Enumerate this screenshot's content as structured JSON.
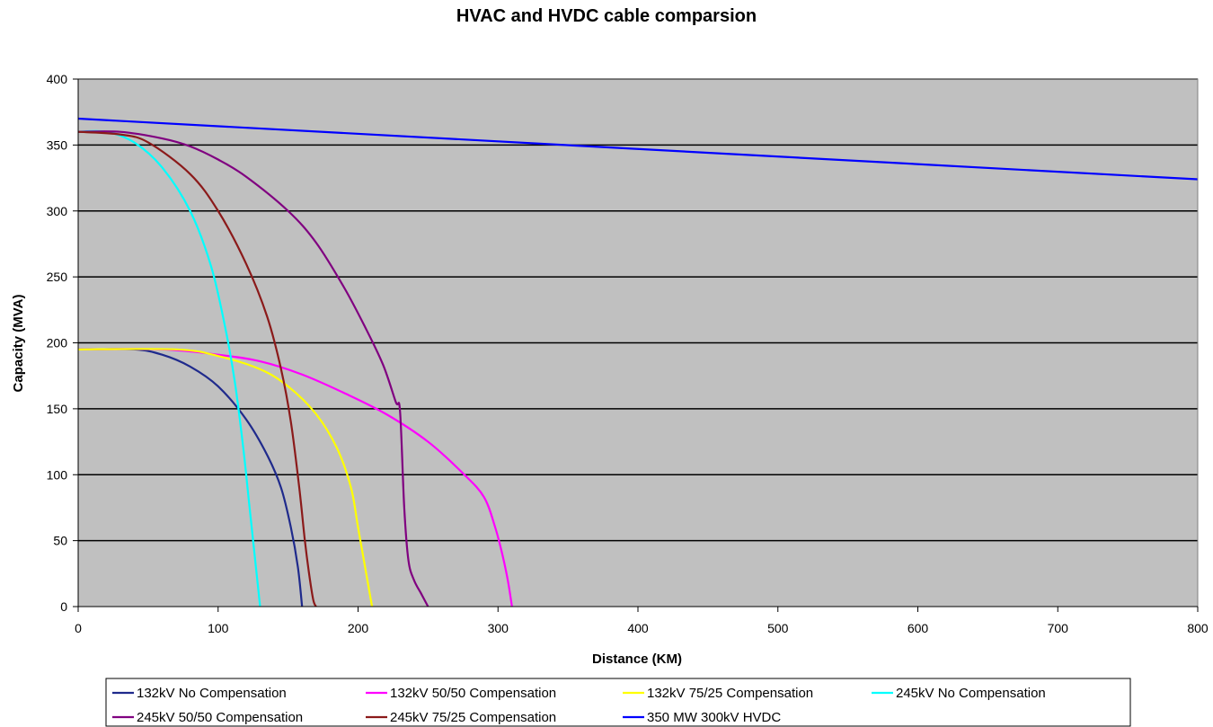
{
  "chart_data": {
    "type": "line",
    "title": "HVAC and HVDC cable comparsion",
    "xlabel": "Distance (KM)",
    "ylabel": "Capacity (MVA)",
    "xlim": [
      0,
      800
    ],
    "ylim": [
      0,
      400
    ],
    "x_ticks": [
      "0",
      "100",
      "200",
      "300",
      "400",
      "500",
      "600",
      "700",
      "800"
    ],
    "y_ticks": [
      "0",
      "50",
      "100",
      "150",
      "200",
      "250",
      "300",
      "350",
      "400"
    ],
    "grid": "horizontal major gridlines",
    "legend_position": "bottom",
    "plot_background": "#c0c0c0",
    "series": [
      {
        "name": "132kV No Compensation",
        "color": "#1f2a8c",
        "points": [
          [
            0,
            195
          ],
          [
            40,
            195
          ],
          [
            60,
            191
          ],
          [
            80,
            182
          ],
          [
            100,
            167
          ],
          [
            120,
            142
          ],
          [
            135,
            115
          ],
          [
            145,
            90
          ],
          [
            152,
            60
          ],
          [
            157,
            30
          ],
          [
            160,
            0
          ]
        ]
      },
      {
        "name": "132kV 50/50 Compensation",
        "color": "#ff00ff",
        "points": [
          [
            0,
            195
          ],
          [
            60,
            195
          ],
          [
            100,
            191
          ],
          [
            130,
            186
          ],
          [
            160,
            176
          ],
          [
            190,
            162
          ],
          [
            220,
            146
          ],
          [
            250,
            125
          ],
          [
            275,
            101
          ],
          [
            290,
            83
          ],
          [
            298,
            60
          ],
          [
            303,
            40
          ],
          [
            307,
            20
          ],
          [
            310,
            0
          ]
        ]
      },
      {
        "name": "132kV 75/25 Compensation",
        "color": "#ffff00",
        "points": [
          [
            0,
            195
          ],
          [
            70,
            195
          ],
          [
            100,
            190
          ],
          [
            130,
            180
          ],
          [
            150,
            167
          ],
          [
            170,
            146
          ],
          [
            185,
            120
          ],
          [
            195,
            90
          ],
          [
            200,
            60
          ],
          [
            205,
            30
          ],
          [
            210,
            0
          ]
        ]
      },
      {
        "name": "245kV No Compensation",
        "color": "#00ffff",
        "points": [
          [
            0,
            360
          ],
          [
            20,
            360
          ],
          [
            40,
            352
          ],
          [
            60,
            333
          ],
          [
            80,
            300
          ],
          [
            95,
            258
          ],
          [
            105,
            212
          ],
          [
            112,
            170
          ],
          [
            118,
            120
          ],
          [
            122,
            80
          ],
          [
            126,
            40
          ],
          [
            130,
            0
          ]
        ]
      },
      {
        "name": "245kV 50/50 Compensation",
        "color": "#800080",
        "points": [
          [
            0,
            360
          ],
          [
            30,
            360
          ],
          [
            60,
            355
          ],
          [
            80,
            349
          ],
          [
            100,
            339
          ],
          [
            120,
            326
          ],
          [
            150,
            300
          ],
          [
            170,
            276
          ],
          [
            190,
            242
          ],
          [
            205,
            212
          ],
          [
            218,
            183
          ],
          [
            227,
            155
          ],
          [
            230,
            148
          ],
          [
            233,
            75
          ],
          [
            236,
            35
          ],
          [
            240,
            20
          ],
          [
            245,
            10
          ],
          [
            250,
            0
          ]
        ]
      },
      {
        "name": "245kV 75/25 Compensation",
        "color": "#8b1a1a",
        "points": [
          [
            0,
            360
          ],
          [
            30,
            358
          ],
          [
            50,
            352
          ],
          [
            80,
            328
          ],
          [
            100,
            300
          ],
          [
            120,
            260
          ],
          [
            135,
            220
          ],
          [
            145,
            180
          ],
          [
            152,
            140
          ],
          [
            158,
            90
          ],
          [
            162,
            50
          ],
          [
            165,
            25
          ],
          [
            168,
            5
          ],
          [
            170,
            0
          ]
        ]
      },
      {
        "name": "350 MW 300kV HVDC",
        "color": "#0000ff",
        "points": [
          [
            0,
            370
          ],
          [
            800,
            324
          ]
        ]
      }
    ]
  },
  "legend": {
    "rows": [
      [
        "132kV No Compensation",
        "132kV 50/50 Compensation",
        "132kV 75/25 Compensation",
        "245kV No Compensation"
      ],
      [
        "245kV 50/50 Compensation",
        "245kV 75/25 Compensation",
        "350 MW 300kV HVDC"
      ]
    ]
  }
}
